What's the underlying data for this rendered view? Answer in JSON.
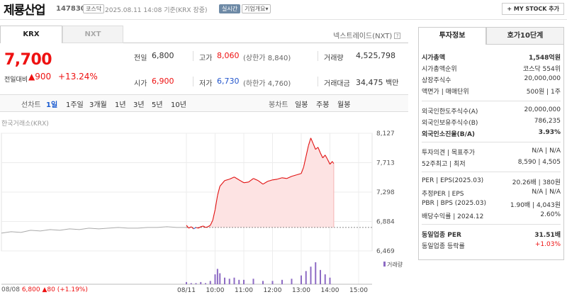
{
  "header": {
    "name": "제룡산업",
    "code": "147830",
    "market": "코스닥",
    "datetime": "2025.08.11 14:08  기준(KRX 장중)",
    "realtime": "실시간",
    "overview": "기업개요",
    "overview_arrow": "▾",
    "mystock": "+ MY STOCK 추가"
  },
  "tabs": {
    "krx": "KRX",
    "nxt": "NXT",
    "nextrade": "넥스트레이드(NXT)"
  },
  "price": {
    "current": "7,700",
    "change_label": "전일대비",
    "change_arrow": "▲",
    "change_value": "900",
    "change_pct": "+13.24%"
  },
  "quote": {
    "prev_label": "전일",
    "prev_val": "6,800",
    "high_label": "고가",
    "high_val": "8,060",
    "upper_label": "(상한가",
    "upper_val": "8,840)",
    "volume_label": "거래량",
    "volume_val": "4,525,798",
    "open_label": "시가",
    "open_val": "6,900",
    "low_label": "저가",
    "low_val": "6,730",
    "lower_label": "(하한가",
    "lower_val": "4,760)",
    "amount_label": "거래대금",
    "amount_val": "34,475",
    "amount_unit": "백만"
  },
  "chart_toolbar": {
    "line_chart": "선차트",
    "periods": [
      "1일",
      "1주일",
      "3개월",
      "1년",
      "3년",
      "5년",
      "10년"
    ],
    "candle": "봉차트",
    "candle_periods": [
      "일봉",
      "주봉",
      "월봉"
    ]
  },
  "chart": {
    "source": "한국거래소(KRX)",
    "volume_label": "거래량",
    "footer_date": "08/08",
    "footer_price": "6,800",
    "footer_arrow": "▲",
    "footer_change": "80",
    "footer_pct": "(+1.19%)",
    "colors": {
      "up": "#e11111",
      "down": "#3366cc",
      "prev": "#888888"
    }
  },
  "chart_data": {
    "type": "line",
    "yticks": [
      "8,127",
      "7,713",
      "7,298",
      "6,884",
      "6,469"
    ],
    "ylim": [
      6469,
      8127
    ],
    "xticks": [
      "08/11",
      "10:00",
      "11:00",
      "12:00",
      "13:00",
      "14:00",
      "15:00"
    ],
    "prev_close": 6800,
    "series": [
      {
        "x": [
          "09:00",
          "09:05",
          "09:10",
          "09:15",
          "09:20",
          "09:25",
          "09:30",
          "09:35",
          "09:40",
          "09:45",
          "09:50",
          "09:55",
          "10:00",
          "10:05",
          "10:10",
          "10:15",
          "10:20",
          "10:30",
          "10:40",
          "10:50",
          "11:00",
          "11:10",
          "11:20",
          "11:30",
          "11:40",
          "11:50",
          "12:00",
          "12:10",
          "12:20",
          "12:30",
          "12:40",
          "12:50",
          "13:00",
          "13:05",
          "13:10",
          "13:15",
          "13:20",
          "13:25",
          "13:30",
          "13:35",
          "13:40",
          "13:45",
          "13:50",
          "13:55",
          "14:00",
          "14:05",
          "14:08"
        ],
        "values": [
          6830,
          6790,
          6810,
          6780,
          6800,
          6790,
          6810,
          6820,
          6800,
          6810,
          6830,
          6900,
          7050,
          7250,
          7380,
          7420,
          7460,
          7480,
          7510,
          7470,
          7430,
          7440,
          7490,
          7460,
          7410,
          7450,
          7470,
          7480,
          7500,
          7490,
          7520,
          7540,
          7560,
          7650,
          7800,
          7950,
          8060,
          7980,
          7900,
          7930,
          7850,
          7780,
          7820,
          7760,
          7690,
          7730,
          7700
        ]
      }
    ],
    "prev_day_series": {
      "values": [
        6720,
        6740,
        6730,
        6760,
        6750,
        6770,
        6760,
        6780,
        6770,
        6790,
        6780,
        6790,
        6800,
        6790,
        6790,
        6800,
        6800,
        6810,
        6800,
        6800
      ]
    },
    "volume": {
      "x": [
        "09:00",
        "09:10",
        "09:20",
        "09:30",
        "09:40",
        "09:50",
        "10:00",
        "10:05",
        "10:10",
        "10:20",
        "10:30",
        "10:40",
        "10:50",
        "11:00",
        "11:20",
        "11:40",
        "12:00",
        "12:20",
        "12:40",
        "13:00",
        "13:10",
        "13:20",
        "13:30",
        "13:40",
        "13:50",
        "14:00"
      ],
      "values": [
        2,
        1,
        1,
        2,
        1,
        3,
        9,
        14,
        10,
        6,
        5,
        6,
        4,
        4,
        5,
        3,
        3,
        4,
        5,
        8,
        12,
        16,
        20,
        13,
        9,
        6
      ]
    }
  },
  "invest": {
    "tabs": [
      "투자정보",
      "호가10단계"
    ],
    "rows": [
      {
        "k": "시가총액",
        "v": "1,548억원",
        "bold": true
      },
      {
        "k": "시가총액순위",
        "v": "코스닥 554위"
      },
      {
        "k": "상장주식수",
        "v": "20,000,000"
      },
      {
        "k": "액면가 | 매매단위",
        "v": "500원  |  1주"
      },
      {
        "k": "외국인한도주식수(A)",
        "v": "20,000,000"
      },
      {
        "k": "외국인보유주식수(B)",
        "v": "786,235"
      },
      {
        "k": "외국인소진율(B/A)",
        "v": "3.93%",
        "bold": true
      },
      {
        "k": "투자의견 | 목표주가",
        "v": "N/A  |  N/A"
      },
      {
        "k": "52주최고 | 최저",
        "v": "8,590  |  4,505"
      },
      {
        "k": "PER | EPS(2025.03)",
        "v": "20.26배  |  380원"
      },
      {
        "k": "추정PER | EPS",
        "v": "N/A  |  N/A"
      },
      {
        "k": "PBR | BPS (2025.03)",
        "v": "1.90배  |  4,043원"
      },
      {
        "k": "배당수익률 | 2024.12",
        "v": "2.60%"
      },
      {
        "k": "동일업종 PER",
        "v": "31.51배",
        "bold": true
      },
      {
        "k": "동일업종 등락률",
        "v": "+1.03%",
        "red": true
      }
    ]
  }
}
